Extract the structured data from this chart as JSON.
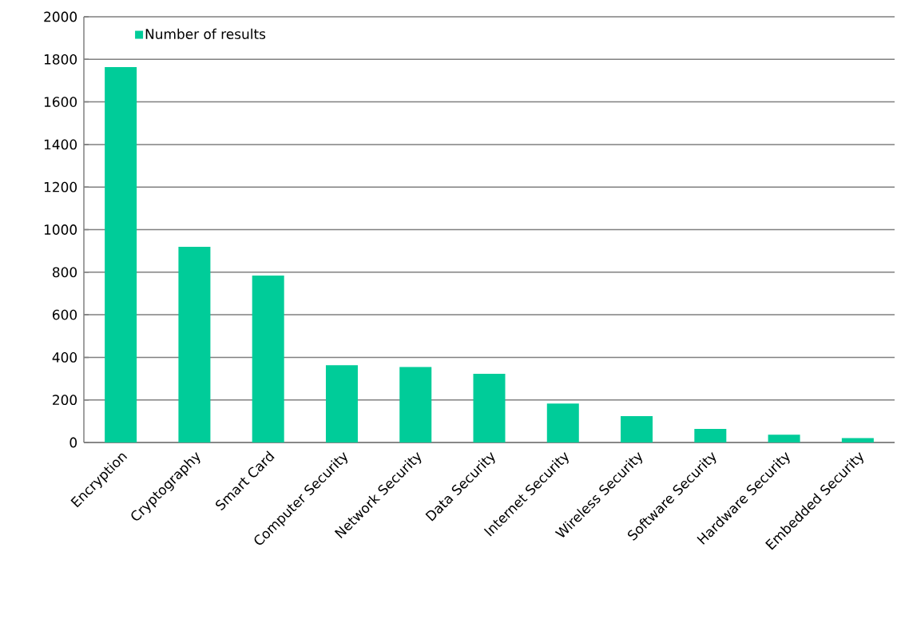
{
  "chart_data": {
    "type": "bar",
    "categories": [
      "Encryption",
      "Cryptography",
      "Smart Card",
      "Computer Security",
      "Network Security",
      "Data Security",
      "Internet Security",
      "Wireless Security",
      "Software Security",
      "Hardware Security",
      "Embedded Security"
    ],
    "series": [
      {
        "name": "Number of results",
        "color": "#00cc99",
        "values": [
          1764,
          919,
          784,
          363,
          355,
          323,
          183,
          124,
          64,
          37,
          21
        ]
      }
    ],
    "ylim": [
      0,
      2000
    ],
    "yticks": [
      0,
      200,
      400,
      600,
      800,
      1000,
      1200,
      1400,
      1600,
      1800,
      2000
    ],
    "grid": "y",
    "legend": "top left"
  }
}
